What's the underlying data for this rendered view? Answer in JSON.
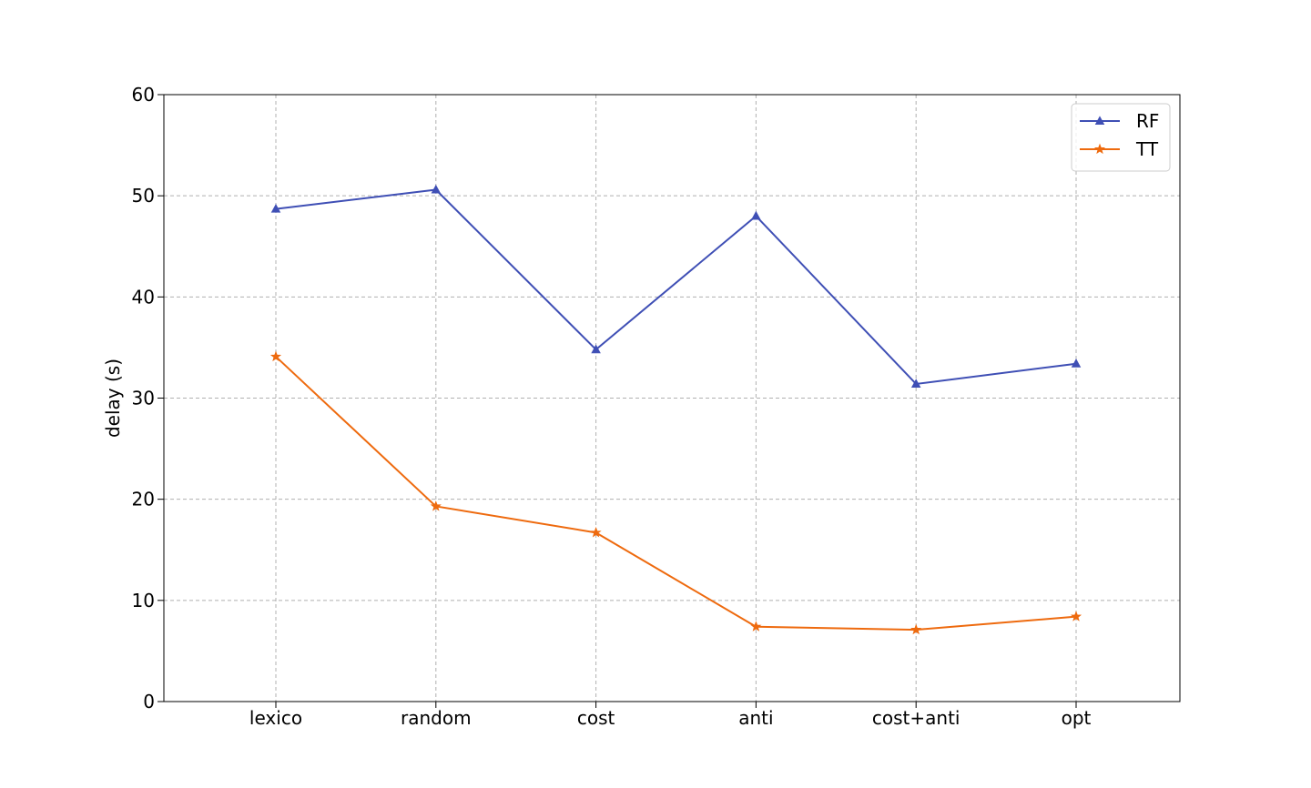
{
  "chart_data": {
    "type": "line",
    "title": "",
    "xlabel": "",
    "ylabel": "delay (s)",
    "categories": [
      "lexico",
      "random",
      "cost",
      "anti",
      "cost+anti",
      "opt"
    ],
    "ylim": [
      0,
      60
    ],
    "yticks": [
      0,
      10,
      20,
      30,
      40,
      50,
      60
    ],
    "grid": true,
    "legend_position": "top-right",
    "series": [
      {
        "name": "RF",
        "color": "#3f4fb5",
        "marker": "triangle",
        "values": [
          48.7,
          50.6,
          34.8,
          48.0,
          31.4,
          33.4
        ]
      },
      {
        "name": "TT",
        "color": "#ee6a0e",
        "marker": "star",
        "values": [
          34.1,
          19.3,
          16.7,
          7.4,
          7.1,
          8.4
        ]
      }
    ]
  }
}
